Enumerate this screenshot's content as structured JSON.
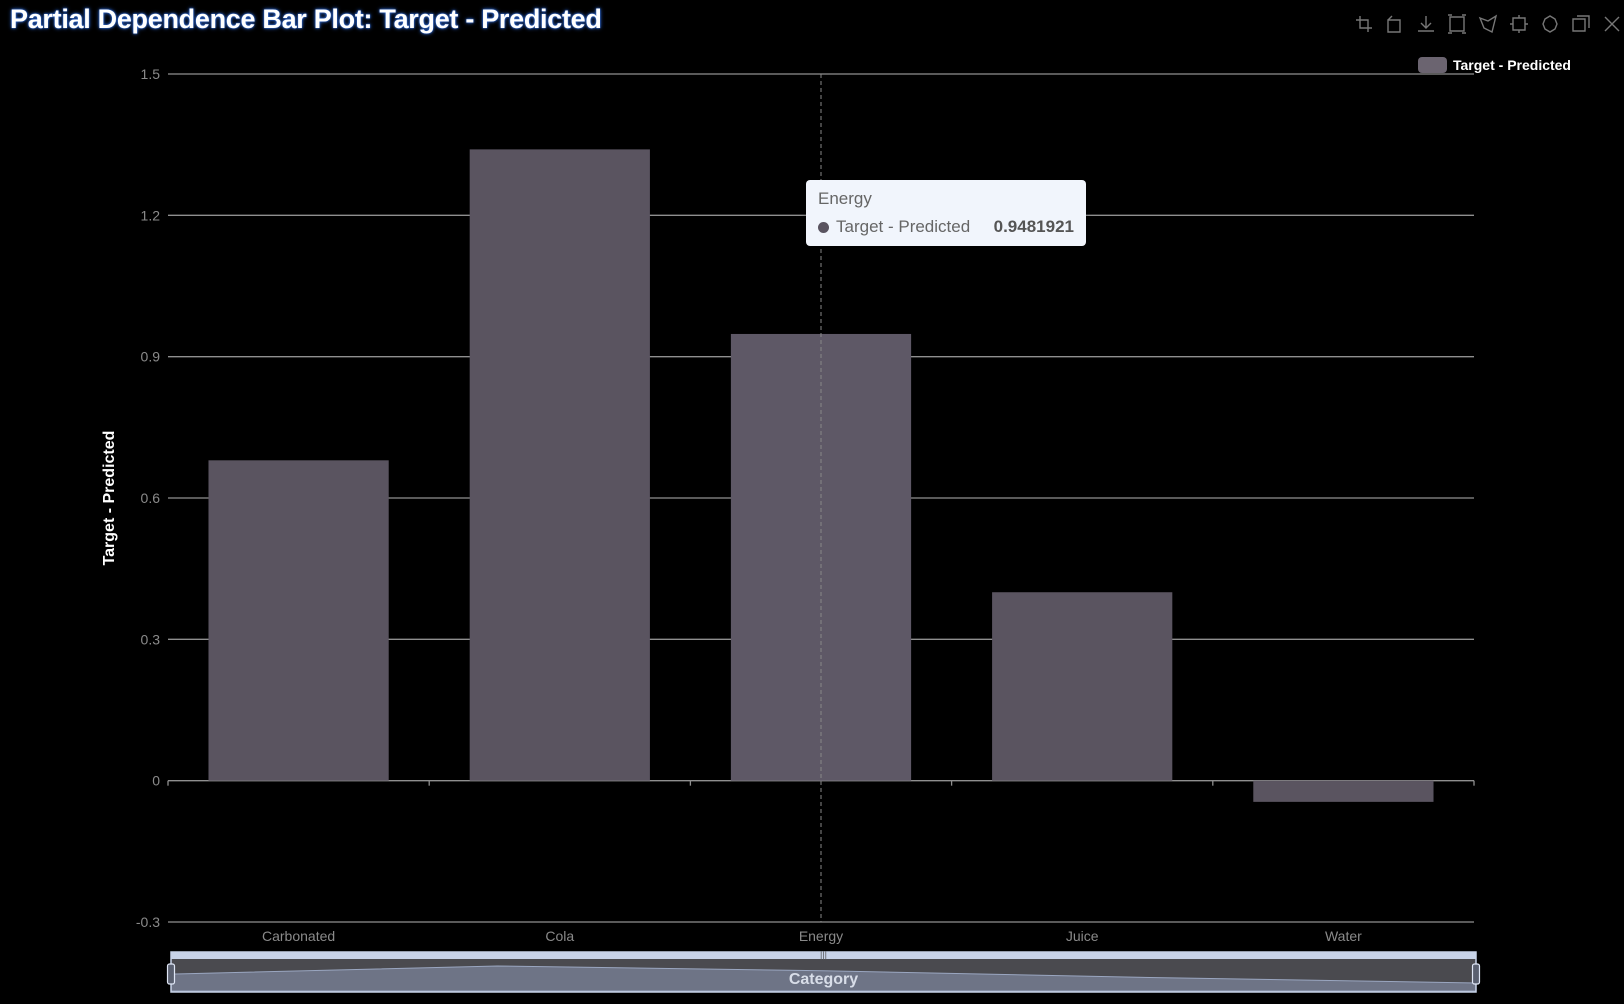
{
  "page": {
    "title": "Partial Dependence Bar Plot: Target - Predicted"
  },
  "toolbox": {
    "items": [
      {
        "name": "zoom-icon"
      },
      {
        "name": "zoom-reset-icon"
      },
      {
        "name": "download-icon"
      },
      {
        "name": "rect-select-icon"
      },
      {
        "name": "polygon-select-icon"
      },
      {
        "name": "keep-select-icon"
      },
      {
        "name": "clear-select-icon"
      },
      {
        "name": "data-view-icon"
      },
      {
        "name": "restore-icon"
      }
    ]
  },
  "colors": {
    "background": "#000000",
    "bar": "#5a5460",
    "grid": "#8f8f8f",
    "axis_text": "#8a8a8a",
    "title_glow": "#2b63c9",
    "tooltip_bg": "#f1f5fc"
  },
  "chart_data": {
    "type": "bar",
    "categories": [
      "Carbonated",
      "Cola",
      "Energy",
      "Juice",
      "Water"
    ],
    "series": [
      {
        "name": "Target - Predicted",
        "values": [
          0.68,
          1.34,
          0.9481921,
          0.4,
          -0.045
        ]
      }
    ],
    "ylabel": "Target - Predicted",
    "xlabel": "Category",
    "ylim": [
      -0.3,
      1.5
    ],
    "yticks": [
      "-0.3",
      "0",
      "0.3",
      "0.6",
      "0.9",
      "1.2",
      "1.5"
    ],
    "grid": true,
    "legend": "top-right",
    "highlighted_category": "Energy"
  },
  "tooltip": {
    "title": "Energy",
    "series_name": "Target - Predicted",
    "value": "0.9481921"
  }
}
